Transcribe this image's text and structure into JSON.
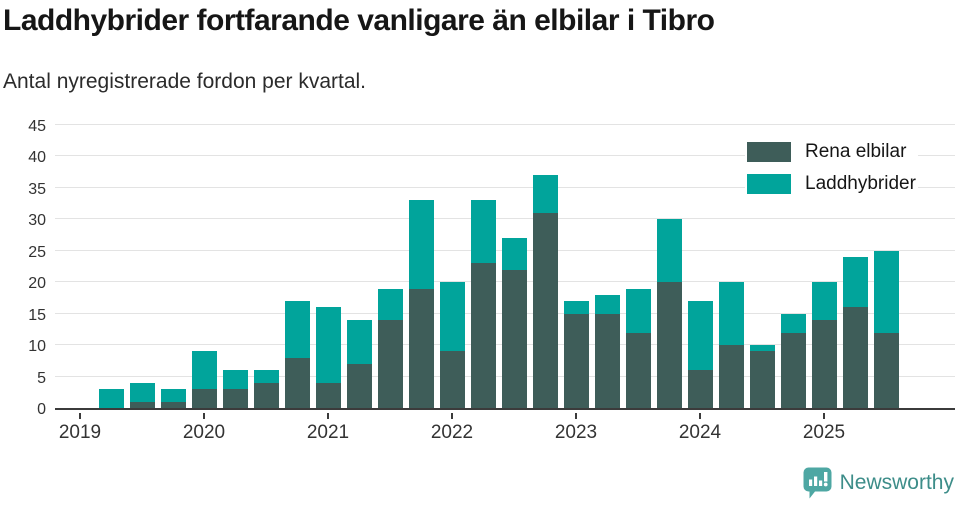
{
  "header": {
    "title": "Laddhybrider fortfarande vanligare än elbilar i Tibro",
    "subtitle": "Antal nyregistrerade fordon per kvartal."
  },
  "colors": {
    "bar_rena_elbilar": "#3e5d59",
    "bar_laddhybrider": "#01a49b",
    "axis_line": "#3b3b3b",
    "gridline": "#e3e3e3",
    "tick_text": "#333333",
    "title_text": "#161616",
    "logo_icon": "#4ea7a3",
    "logo_text": "#3d8d89"
  },
  "footer": {
    "brand": "Newsworthy",
    "logo": "bar-chart-speech-bubble-icon"
  },
  "chart_data": {
    "type": "bar",
    "stacked": true,
    "title": "Laddhybrider fortfarande vanligare än elbilar i Tibro",
    "subtitle": "Antal nyregistrerade fordon per kvartal.",
    "x": [
      "2019-Q1",
      "2019-Q2",
      "2019-Q3",
      "2019-Q4",
      "2020-Q1",
      "2020-Q2",
      "2020-Q3",
      "2020-Q4",
      "2021-Q1",
      "2021-Q2",
      "2021-Q3",
      "2021-Q4",
      "2022-Q1",
      "2022-Q2",
      "2022-Q3",
      "2022-Q4",
      "2023-Q1",
      "2023-Q2",
      "2023-Q3",
      "2023-Q4",
      "2024-Q1",
      "2024-Q2",
      "2024-Q3",
      "2024-Q4",
      "2025-Q1",
      "2025-Q2",
      "2025-Q3"
    ],
    "year_tick_labels": [
      "2019",
      "2020",
      "2021",
      "2022",
      "2023",
      "2024",
      "2025"
    ],
    "tick_every": 4,
    "series": [
      {
        "name": "Rena elbilar",
        "color": "#3e5d59",
        "values": [
          0,
          0,
          1,
          1,
          3,
          3,
          4,
          8,
          4,
          7,
          14,
          19,
          9,
          23,
          22,
          31,
          15,
          15,
          12,
          20,
          6,
          10,
          9,
          12,
          14,
          16,
          12
        ]
      },
      {
        "name": "Laddhybrider",
        "color": "#01a49b",
        "values": [
          0,
          3,
          3,
          2,
          6,
          3,
          2,
          9,
          12,
          7,
          5,
          14,
          11,
          10,
          5,
          6,
          2,
          3,
          7,
          10,
          11,
          10,
          1,
          3,
          6,
          8,
          13
        ]
      }
    ],
    "totals": [
      0,
      3,
      4,
      3,
      9,
      6,
      6,
      17,
      16,
      14,
      19,
      33,
      20,
      33,
      27,
      37,
      17,
      18,
      19,
      30,
      17,
      20,
      10,
      15,
      20,
      24,
      25
    ],
    "ylim": [
      0,
      45
    ],
    "yticks": [
      0,
      5,
      10,
      15,
      20,
      25,
      30,
      35,
      40,
      45
    ],
    "grid": "horizontal",
    "legend_position": "top-right"
  }
}
